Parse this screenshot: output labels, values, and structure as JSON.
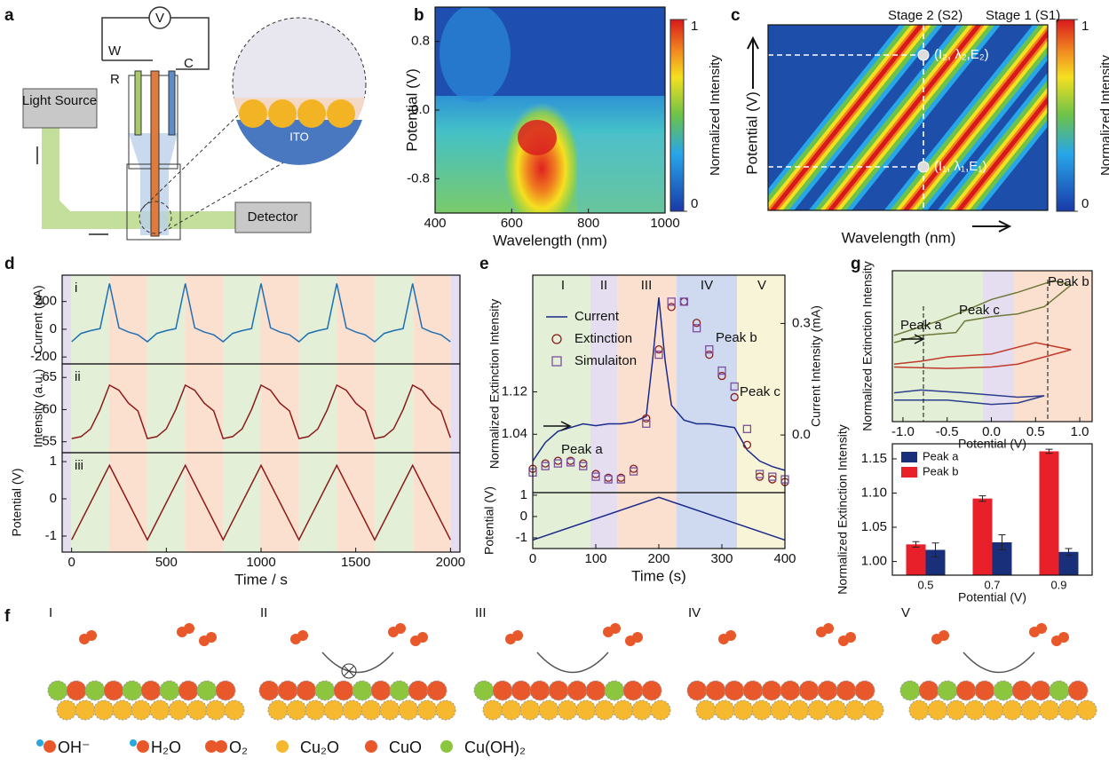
{
  "panel_labels": [
    "a",
    "b",
    "c",
    "d",
    "e",
    "f",
    "g"
  ],
  "schematic": {
    "voltmeter": "V",
    "electrodes": [
      "W",
      "R",
      "C"
    ],
    "light_source": "Light Source",
    "detector": "Detector",
    "substrate": "ITO"
  },
  "stages": {
    "labels": [
      "I",
      "II",
      "III",
      "IV",
      "V"
    ],
    "legend": [
      "OH⁻",
      "H₂O",
      "O₂",
      "Cu₂O",
      "CuO",
      "Cu(OH)₂"
    ]
  },
  "chart_data": [
    {
      "type": "heatmap",
      "xlabel": "Wavelength (nm)",
      "ylabel": "Potential (V)",
      "xlim": [
        400,
        1000
      ],
      "xticks": [
        400,
        600,
        800,
        1000
      ],
      "ylim": [
        -1.2,
        1.2
      ],
      "yticks": [
        0.8,
        {
          "value": 0,
          "label": "0.0"
        },
        -0.8
      ],
      "colorbar_label": "Normalized Intensity",
      "colorbar_lim": [
        0,
        1
      ],
      "colorbar_ticks": [
        0,
        1
      ]
    },
    {
      "type": "heatmap",
      "xlabel": "Wavelength (nm)",
      "ylabel": "Potential (V)",
      "annotations": [
        "Stage 2 (S2)",
        "Stage 1 (S1)",
        "(I₂, λ₂,E₂)",
        "(I₁, λ₁,E₁)"
      ],
      "colorbar_label": "Normalized Intensity",
      "colorbar_lim": [
        0,
        1
      ],
      "colorbar_ticks": [
        0,
        1
      ]
    },
    {
      "type": "line",
      "panel_label": "i",
      "ylabel": "Current (μA)",
      "xlim": [
        -50,
        2050
      ],
      "ylim": [
        -250,
        390
      ],
      "yticks": [
        200,
        0,
        -200
      ],
      "x": [
        0,
        50,
        100,
        150,
        200,
        250,
        300,
        350,
        400,
        450,
        500,
        550,
        600,
        650,
        700,
        750,
        800,
        850,
        900,
        950,
        1000,
        1050,
        1100,
        1150,
        1200,
        1250,
        1300,
        1350,
        1400,
        1450,
        1500,
        1550,
        1600,
        1650,
        1700,
        1750,
        1800,
        1850,
        1900,
        1950,
        2000
      ],
      "series": [
        {
          "color": "#1f6fb4",
          "values": [
            -90,
            -30,
            -10,
            5,
            330,
            10,
            -20,
            -40,
            -90,
            -30,
            -10,
            5,
            330,
            10,
            -20,
            -40,
            -90,
            -30,
            -10,
            5,
            330,
            10,
            -20,
            -40,
            -90,
            -30,
            -10,
            5,
            330,
            10,
            -20,
            -40,
            -90,
            -30,
            -10,
            5,
            330,
            10,
            -20,
            -40,
            -90
          ]
        }
      ]
    },
    {
      "type": "line",
      "panel_label": "ii",
      "ylabel": "Intensity (a.u.)",
      "xlim": [
        -50,
        2050
      ],
      "ylim": [
        53.3,
        67.1
      ],
      "yticks": [
        55,
        60,
        65
      ],
      "x": [
        0,
        50,
        100,
        150,
        200,
        250,
        300,
        350,
        400,
        450,
        500,
        550,
        600,
        650,
        700,
        750,
        800,
        850,
        900,
        950,
        1000,
        1050,
        1100,
        1150,
        1200,
        1250,
        1300,
        1350,
        1400,
        1450,
        1500,
        1550,
        1600,
        1650,
        1700,
        1750,
        1800,
        1850,
        1900,
        1950,
        2000
      ],
      "series": [
        {
          "color": "#8b1a1a",
          "values": [
            55.5,
            55.8,
            57,
            60,
            63.8,
            63,
            61,
            59.8,
            55.5,
            55.8,
            57,
            60,
            63.8,
            63,
            61,
            59.8,
            55.5,
            55.8,
            57,
            60,
            63.8,
            63,
            61,
            59.8,
            55.5,
            55.8,
            57,
            60,
            63.8,
            63,
            61,
            59.8,
            55.5,
            55.8,
            57,
            60,
            63.8,
            63,
            61,
            59.8,
            55.6
          ]
        }
      ]
    },
    {
      "type": "line",
      "panel_label": "iii",
      "ylabel": "Potential (V)",
      "xlabel": "Time / s",
      "xlim": [
        -50,
        2050
      ],
      "xticks": [
        0,
        500,
        1000,
        1500,
        2000
      ],
      "ylim": [
        -1.43,
        1.24
      ],
      "yticks": [
        1,
        0,
        -1
      ],
      "x": [
        0,
        200,
        400,
        600,
        800,
        1000,
        1200,
        1400,
        1600,
        1800,
        2000
      ],
      "series": [
        {
          "color": "#8b1a1a",
          "values": [
            -1.1,
            0.9,
            -1.1,
            0.9,
            -1.1,
            0.9,
            -1.1,
            0.9,
            -1.1,
            0.9,
            -1.1
          ]
        }
      ]
    },
    {
      "type": "line",
      "ylabel": "Normalized Extinction Intensity",
      "y2label": "Current Intensity (mA)",
      "xlim": [
        0,
        400
      ],
      "ylim": [
        0.93,
        1.34
      ],
      "yticks": [
        1.04,
        1.12
      ],
      "y2lim": [
        -0.155,
        0.43
      ],
      "y2ticks": [
        {
          "value": 0,
          "label": "0.0"
        },
        0.3
      ],
      "annotations": [
        "I",
        "II",
        "III",
        "IV",
        "V",
        "Peak a",
        "Peak b",
        "Peak c"
      ],
      "series": [
        {
          "name": "Current",
          "color": "#1a2a8c",
          "axis": "y2",
          "x": [
            0,
            20,
            40,
            60,
            80,
            100,
            120,
            140,
            160,
            180,
            190,
            200,
            210,
            220,
            240,
            260,
            280,
            300,
            320,
            340,
            360,
            380,
            400
          ],
          "values": [
            -0.07,
            -0.02,
            0.01,
            0.02,
            0.03,
            0.025,
            0.03,
            0.03,
            0.035,
            0.05,
            0.2,
            0.37,
            0.2,
            0.08,
            0.04,
            0.03,
            0.03,
            0.025,
            0.02,
            -0.04,
            -0.07,
            -0.085,
            -0.095
          ]
        },
        {
          "name": "Extinction",
          "color": "#8b1a1a",
          "marker": "circle",
          "x": [
            0,
            20,
            40,
            60,
            80,
            100,
            120,
            140,
            160,
            180,
            200,
            220,
            240,
            260,
            280,
            300,
            320,
            340,
            360,
            380,
            400
          ],
          "values": [
            0.975,
            0.985,
            0.99,
            0.99,
            0.985,
            0.965,
            0.958,
            0.958,
            0.975,
            1.07,
            1.2,
            1.28,
            1.29,
            1.25,
            1.19,
            1.15,
            1.11,
            1.02,
            0.96,
            0.955,
            0.95
          ]
        },
        {
          "name": "Simulaiton",
          "color": "#7a4fa0",
          "marker": "square",
          "x": [
            0,
            20,
            40,
            60,
            80,
            100,
            120,
            140,
            160,
            180,
            200,
            220,
            240,
            260,
            280,
            300,
            320,
            340,
            360,
            380,
            400
          ],
          "values": [
            0.968,
            0.98,
            0.985,
            0.987,
            0.98,
            0.96,
            0.955,
            0.955,
            0.97,
            1.06,
            1.19,
            1.29,
            1.29,
            1.24,
            1.2,
            1.16,
            1.13,
            1.05,
            0.965,
            0.96,
            0.955
          ]
        }
      ]
    },
    {
      "type": "line",
      "ylabel": "Potential (V)",
      "xlabel": "Time (s)",
      "xlim": [
        0,
        400
      ],
      "xticks": [
        0,
        100,
        200,
        300,
        400
      ],
      "ylim": [
        -1.5,
        1.12
      ],
      "yticks": [
        1,
        0,
        -1
      ],
      "x": [
        0,
        200,
        400
      ],
      "series": [
        {
          "color": "#1a2a8c",
          "values": [
            -1.1,
            0.9,
            -1.1
          ]
        }
      ]
    },
    {
      "type": "line",
      "xlabel": "Potential (V)",
      "ylabel": "Normalized Extinction Intensity",
      "xlim": [
        -1.12,
        1.14
      ],
      "ylim": [
        0,
        1.05
      ],
      "xticks": [
        {
          "value": -1,
          "label": "-1.0"
        },
        -0.5,
        {
          "value": 0,
          "label": "0.0"
        },
        0.5,
        {
          "value": 1,
          "label": "1.0"
        }
      ],
      "annotations": [
        "Peak a",
        "Peak c",
        "Peak b"
      ],
      "series": [
        {
          "color": "#6f7a3a",
          "x": [
            -1.1,
            -0.8,
            -0.4,
            -0.3,
            0,
            0.3,
            0.6,
            0.9,
            0.7,
            0.3,
            0,
            -0.3,
            -0.6,
            -1.1
          ],
          "values": [
            0.55,
            0.6,
            0.62,
            0.7,
            0.73,
            0.75,
            0.8,
            0.95,
            0.98,
            0.9,
            0.85,
            0.77,
            0.7,
            0.6
          ]
        },
        {
          "color": "#c0392b",
          "x": [
            -1.1,
            -0.5,
            0,
            0.3,
            0.6,
            0.9,
            0.5,
            0,
            -0.5,
            -0.8,
            -1.1
          ],
          "values": [
            0.38,
            0.37,
            0.38,
            0.4,
            0.45,
            0.5,
            0.55,
            0.47,
            0.45,
            0.42,
            0.4
          ]
        },
        {
          "color": "#2c3e8c",
          "x": [
            -1.1,
            -0.5,
            0,
            0.3,
            0.6,
            0.3,
            -0.3,
            -0.8,
            -1.1
          ],
          "values": [
            0.15,
            0.15,
            0.12,
            0.13,
            0.18,
            0.17,
            0.2,
            0.22,
            0.2
          ]
        }
      ]
    },
    {
      "type": "bar",
      "xlabel": "Potential (V)",
      "ylabel": "Normalized Extinction Intensity",
      "categories": [
        "0.5",
        "0.7",
        "0.9"
      ],
      "ylim": [
        0.98,
        1.172
      ],
      "yticks": [
        {
          "value": 1,
          "label": "1.00"
        },
        1.05,
        {
          "value": 1.1,
          "label": "1.10"
        },
        1.15
      ],
      "legend": "upper left",
      "series": [
        {
          "name": "Peak a",
          "color": "#1a2f7a",
          "values": [
            1.017,
            1.028,
            1.014
          ],
          "errors": [
            0.01,
            0.011,
            0.005
          ]
        },
        {
          "name": "Peak b",
          "color": "#e8202a",
          "values": [
            1.025,
            1.092,
            1.161
          ],
          "errors": [
            0.004,
            0.004,
            0.003
          ]
        }
      ]
    }
  ]
}
